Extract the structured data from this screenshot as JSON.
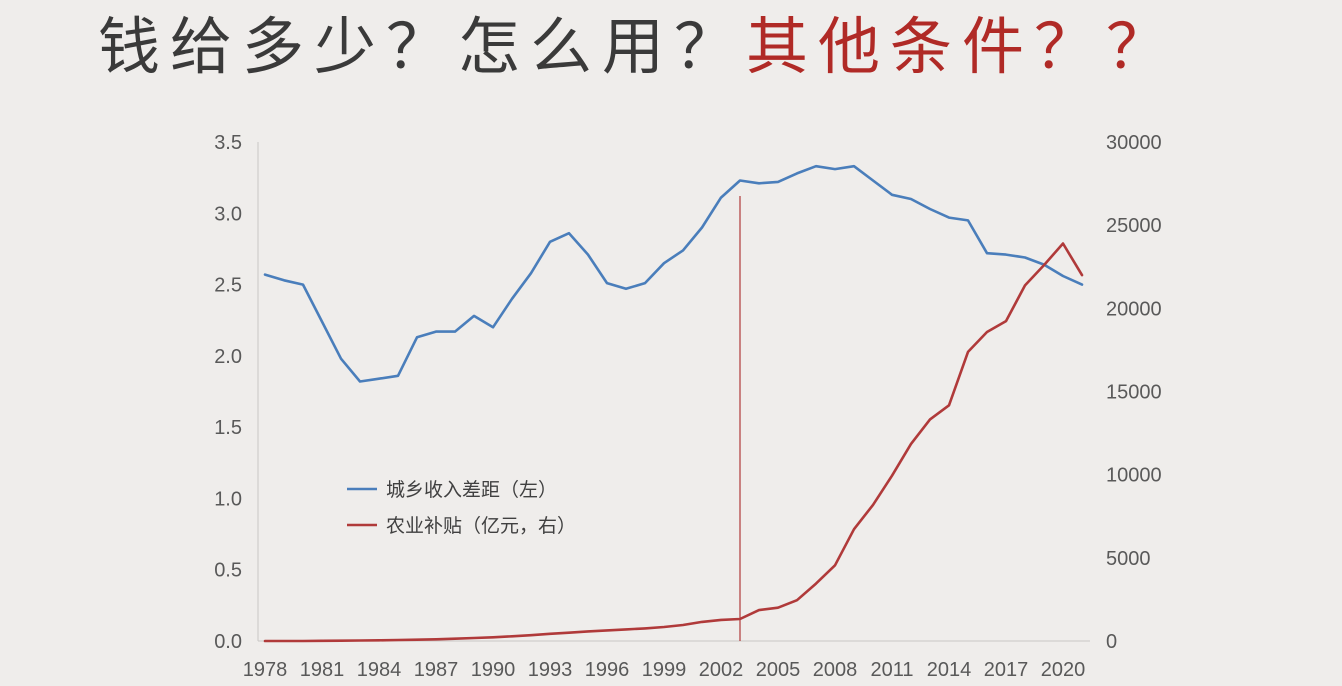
{
  "headline": {
    "part_dark": "钱给多少？怎么用？",
    "part_red": "其他条件？？",
    "color_dark": "#3a3a3a",
    "color_red": "#b02a26"
  },
  "chart_data": {
    "type": "line",
    "title": "",
    "x": [
      1978,
      1979,
      1980,
      1981,
      1982,
      1983,
      1984,
      1985,
      1986,
      1987,
      1988,
      1989,
      1990,
      1991,
      1992,
      1993,
      1994,
      1995,
      1996,
      1997,
      1998,
      1999,
      2000,
      2001,
      2002,
      2003,
      2004,
      2005,
      2006,
      2007,
      2008,
      2009,
      2010,
      2011,
      2012,
      2013,
      2014,
      2015,
      2016,
      2017,
      2018,
      2019,
      2020,
      2021
    ],
    "x_ticks": [
      "1978",
      "1981",
      "1984",
      "1987",
      "1990",
      "1993",
      "1996",
      "1999",
      "2002",
      "2005",
      "2008",
      "2011",
      "2014",
      "2017",
      "2020"
    ],
    "y_left_ticks": [
      "0.0",
      "0.5",
      "1.0",
      "1.5",
      "2.0",
      "2.5",
      "3.0",
      "3.5"
    ],
    "y_left_range": [
      0,
      3.5
    ],
    "y_right_ticks": [
      "0",
      "5000",
      "10000",
      "15000",
      "20000",
      "25000",
      "30000"
    ],
    "y_right_range": [
      0,
      30000
    ],
    "series": [
      {
        "name": "城乡收入差距（左）",
        "axis": "left",
        "color": "#4a7ebb",
        "values": [
          2.57,
          2.53,
          2.5,
          2.24,
          1.98,
          1.82,
          1.84,
          1.86,
          2.13,
          2.17,
          2.17,
          2.28,
          2.2,
          2.4,
          2.58,
          2.8,
          2.86,
          2.71,
          2.51,
          2.47,
          2.51,
          2.65,
          2.74,
          2.9,
          3.11,
          3.23,
          3.21,
          3.22,
          3.28,
          3.33,
          3.31,
          3.33,
          3.23,
          3.13,
          3.1,
          3.03,
          2.97,
          2.95,
          2.72,
          2.71,
          2.69,
          2.64,
          2.56,
          2.5
        ]
      },
      {
        "name": "农业补贴（亿元，右）",
        "axis": "right",
        "color": "#b03a3a",
        "values": [
          0,
          0,
          0,
          10,
          20,
          30,
          40,
          60,
          80,
          100,
          140,
          180,
          220,
          280,
          350,
          430,
          500,
          580,
          640,
          700,
          760,
          840,
          960,
          1150,
          1270,
          1320,
          1860,
          2000,
          2450,
          3450,
          4550,
          6720,
          8180,
          9940,
          11850,
          13320,
          14170,
          17380,
          18580,
          19230,
          21380,
          22600,
          23900,
          22000
        ]
      }
    ],
    "marker_line_x": 2003,
    "grid": false,
    "legend_position": "left-middle"
  }
}
